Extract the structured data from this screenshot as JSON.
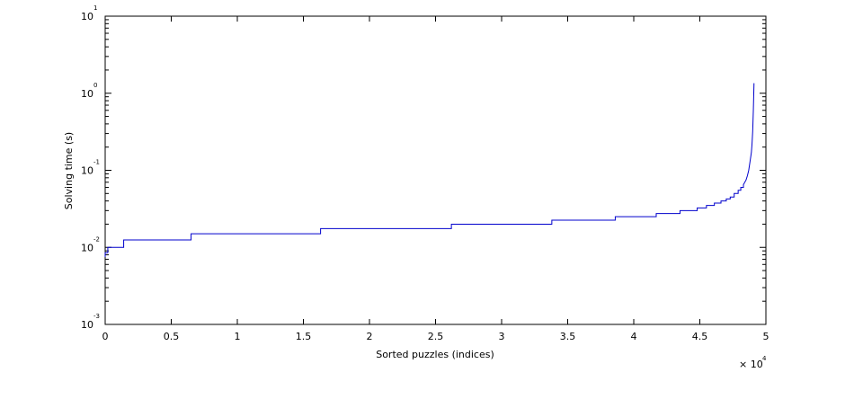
{
  "chart_data": {
    "type": "line",
    "title": "",
    "xlabel": "Sorted puzzles (indices)",
    "ylabel": "Solving time (s)",
    "x_multiplier": {
      "base": "× 10",
      "exponent": "4"
    },
    "xlim": [
      0,
      5
    ],
    "ylim": [
      0.001,
      10
    ],
    "y_scale": "log",
    "x_ticks": [
      "0",
      "0.5",
      "1",
      "1.5",
      "2",
      "2.5",
      "3",
      "3.5",
      "4",
      "4.5",
      "5"
    ],
    "y_ticks": [
      {
        "base": "10",
        "exp": "-3"
      },
      {
        "base": "10",
        "exp": "-2"
      },
      {
        "base": "10",
        "exp": "-1"
      },
      {
        "base": "10",
        "exp": "0"
      },
      {
        "base": "10",
        "exp": "1"
      }
    ],
    "grid": false,
    "line_color": "#0000cc",
    "series": [
      {
        "x": [
          0,
          0,
          0.02,
          0.02,
          0.14,
          0.14,
          0.65,
          0.65,
          1.63,
          1.63,
          2.62,
          2.62,
          3.38,
          3.38,
          3.86,
          3.86,
          4.17,
          4.17,
          4.35,
          4.35,
          4.48,
          4.48,
          4.55,
          4.55,
          4.61,
          4.61,
          4.66,
          4.66,
          4.7,
          4.7,
          4.73,
          4.73,
          4.76,
          4.76,
          4.79,
          4.79,
          4.81,
          4.81,
          4.83,
          4.83,
          4.85,
          4.86,
          4.87,
          4.88,
          4.89,
          4.895,
          4.9,
          4.905,
          4.91
        ],
        "y": [
          0.0075,
          0.0085,
          0.0085,
          0.01,
          0.01,
          0.0125,
          0.0125,
          0.015,
          0.015,
          0.0175,
          0.0175,
          0.02,
          0.02,
          0.0225,
          0.0225,
          0.025,
          0.025,
          0.0275,
          0.0275,
          0.03,
          0.03,
          0.0325,
          0.0325,
          0.035,
          0.035,
          0.0375,
          0.0375,
          0.04,
          0.04,
          0.0425,
          0.0425,
          0.045,
          0.045,
          0.05,
          0.05,
          0.055,
          0.055,
          0.06,
          0.06,
          0.065,
          0.075,
          0.085,
          0.1,
          0.13,
          0.17,
          0.22,
          0.32,
          0.6,
          1.35
        ]
      }
    ]
  }
}
